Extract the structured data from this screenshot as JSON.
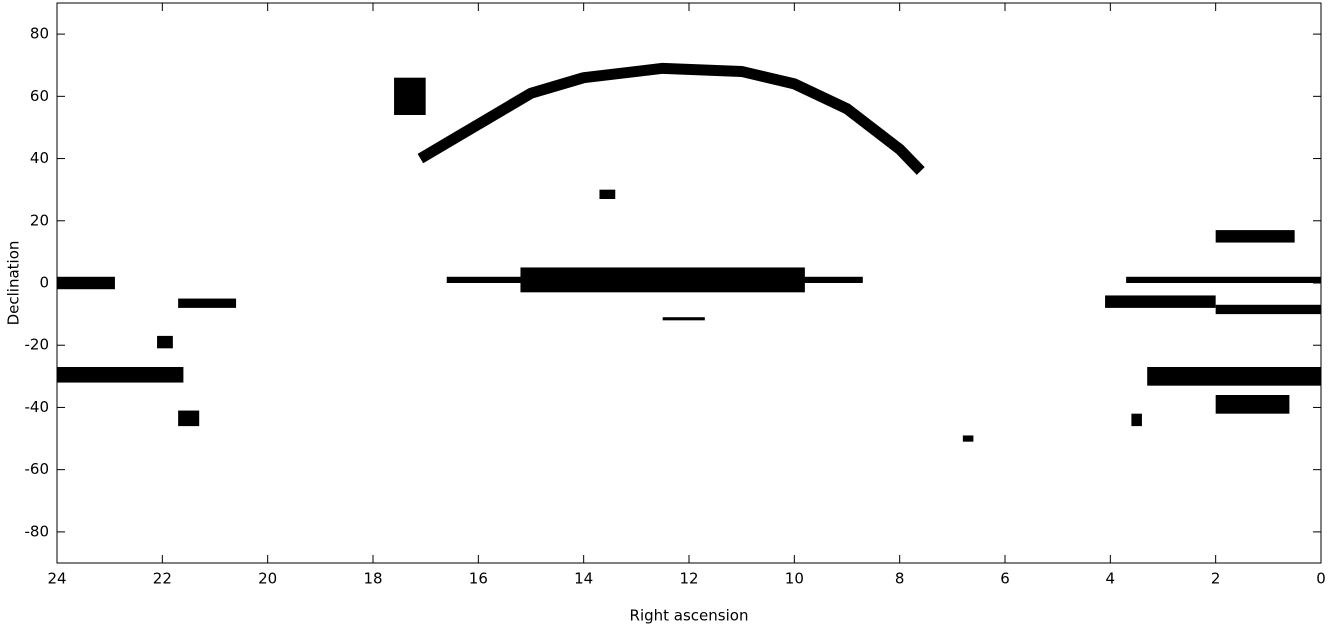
{
  "chart_data": {
    "type": "density_map",
    "xlabel": "Right ascension",
    "ylabel": "Declination",
    "xlim": [
      24,
      0
    ],
    "ylim": [
      -90,
      90
    ],
    "xticks": [
      24,
      22,
      20,
      18,
      16,
      14,
      12,
      10,
      8,
      6,
      4,
      2,
      0
    ],
    "yticks": [
      -80,
      -60,
      -40,
      -20,
      0,
      20,
      40,
      60,
      80
    ],
    "color": "#000000",
    "regions": [
      {
        "ra": [
          24,
          22.9
        ],
        "dec": [
          -2,
          2
        ]
      },
      {
        "ra": [
          24,
          21.6
        ],
        "dec": [
          -32,
          -27
        ]
      },
      {
        "ra": [
          21.7,
          21.3
        ],
        "dec": [
          -46,
          -41
        ]
      },
      {
        "ra": [
          22.1,
          21.8
        ],
        "dec": [
          -21,
          -17
        ]
      },
      {
        "ra": [
          21.7,
          20.6
        ],
        "dec": [
          -8,
          -5
        ]
      },
      {
        "ra": [
          17.6,
          17.0
        ],
        "dec": [
          54,
          66
        ]
      },
      {
        "ra": [
          16.6,
          8.7
        ],
        "dec": [
          0,
          2
        ]
      },
      {
        "ra": [
          15.2,
          9.8
        ],
        "dec": [
          -3,
          5
        ]
      },
      {
        "ra": [
          13.7,
          13.4
        ],
        "dec": [
          27,
          30
        ]
      },
      {
        "ra": [
          12.5,
          11.7
        ],
        "dec": [
          -12,
          -11
        ]
      },
      {
        "ra": [
          3.7,
          0
        ],
        "dec": [
          0,
          2
        ]
      },
      {
        "ra": [
          4.1,
          2.0
        ],
        "dec": [
          -8,
          -4
        ]
      },
      {
        "ra": [
          2.0,
          0
        ],
        "dec": [
          -10,
          -7
        ]
      },
      {
        "ra": [
          2.0,
          0.5
        ],
        "dec": [
          13,
          17
        ]
      },
      {
        "ra": [
          3.3,
          0
        ],
        "dec": [
          -33,
          -27
        ]
      },
      {
        "ra": [
          2.0,
          0.6
        ],
        "dec": [
          -42,
          -36
        ]
      },
      {
        "ra": [
          3.6,
          3.4
        ],
        "dec": [
          -46,
          -42
        ]
      },
      {
        "ra": [
          6.8,
          6.6
        ],
        "dec": [
          -51,
          -49
        ]
      }
    ],
    "arc": {
      "ra": [
        17.1,
        16.2,
        15.0,
        14.0,
        12.5,
        11.0,
        10.0,
        9.0,
        8.0,
        7.6
      ],
      "dec": [
        40,
        49,
        61,
        66,
        69,
        68,
        64,
        56,
        43,
        36
      ]
    }
  }
}
